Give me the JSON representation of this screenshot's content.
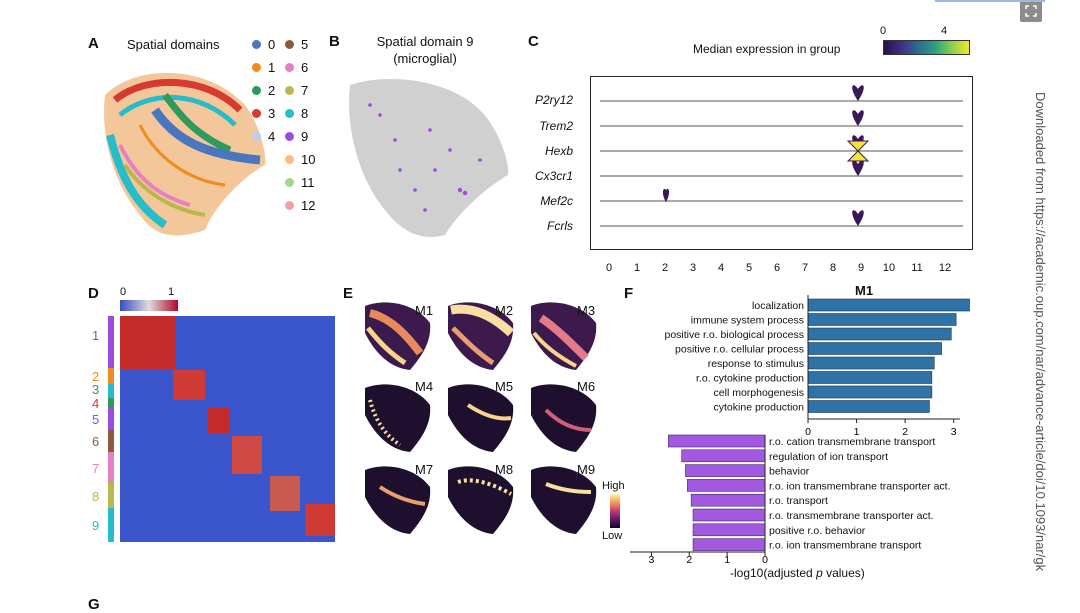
{
  "panels": {
    "A": {
      "letter": "A",
      "title": "Spatial domains",
      "legend": [
        {
          "label": "0",
          "color": "#4a76c0"
        },
        {
          "label": "1",
          "color": "#f28a1c"
        },
        {
          "label": "2",
          "color": "#2f9a5b"
        },
        {
          "label": "3",
          "color": "#d63a30"
        },
        {
          "label": "4",
          "color": "#b8d0ea"
        },
        {
          "label": "5",
          "color": "#8c5a3c"
        },
        {
          "label": "6",
          "color": "#e77fc4"
        },
        {
          "label": "7",
          "color": "#b8b94a"
        },
        {
          "label": "8",
          "color": "#27bcc9"
        },
        {
          "label": "9",
          "color": "#9a4be0"
        },
        {
          "label": "10",
          "color": "#f7be7c"
        },
        {
          "label": "11",
          "color": "#9fd88a"
        },
        {
          "label": "12",
          "color": "#f5a0a0"
        }
      ]
    },
    "B": {
      "letter": "B",
      "title_line1": "Spatial domain 9",
      "title_line2": "(microglial)"
    },
    "C": {
      "letter": "C",
      "colorbar_title": "Median expression in group",
      "colorbar_min": "0",
      "colorbar_max": "4",
      "genes": [
        "P2ry12",
        "Trem2",
        "Hexb",
        "Cx3cr1",
        "Mef2c",
        "Fcrls"
      ],
      "groups": [
        "0",
        "1",
        "2",
        "3",
        "4",
        "5",
        "6",
        "7",
        "8",
        "9",
        "10",
        "11",
        "12"
      ]
    },
    "D": {
      "letter": "D",
      "colorbar_min": "0",
      "colorbar_max": "1",
      "domain_labels": [
        "1",
        "2",
        "3",
        "4",
        "5",
        "6",
        "7",
        "8",
        "9"
      ]
    },
    "E": {
      "letter": "E",
      "modules": [
        "M1",
        "M2",
        "M3",
        "M4",
        "M5",
        "M6",
        "M7",
        "M8",
        "M9"
      ],
      "colorbar_high": "High",
      "colorbar_low": "Low"
    },
    "F": {
      "letter": "F",
      "M1": {
        "title": "M1",
        "terms": [
          "localization",
          "immune system process",
          "positive r.o. biological process",
          "positive r.o. cellular process",
          "response to stimulus",
          "r.o. cytokine production",
          "cell morphogenesis",
          "cytokine production"
        ],
        "ticks": [
          "0",
          "1",
          "2",
          "3"
        ]
      },
      "M5": {
        "title": "M5",
        "terms": [
          "r.o. cation transmembrane transport",
          "regulation of ion transport",
          "behavior",
          "r.o. ion transmembrane transporter act.",
          "r.o. transport",
          "r.o. transmembrane transporter act.",
          "positive r.o. behavior",
          "r.o. ion transmembrane transport"
        ],
        "ticks": [
          "3",
          "2",
          "1",
          "0"
        ]
      },
      "xlabel_prefix": "-log10(adjusted ",
      "xlabel_italic": "p",
      "xlabel_suffix": " values)"
    },
    "G": {
      "letter": "G"
    }
  },
  "chart_data": [
    {
      "type": "bar",
      "title": "M1",
      "categories": [
        "localization",
        "immune system process",
        "positive r.o. biological process",
        "positive r.o. cellular process",
        "response to stimulus",
        "r.o. cytokine production",
        "cell morphogenesis",
        "cytokine production"
      ],
      "values": [
        3.45,
        3.05,
        2.95,
        2.75,
        2.6,
        2.55,
        2.55,
        2.5
      ],
      "xlabel": "-log10(adjusted p values)",
      "xlim": [
        0,
        3.5
      ],
      "color": "#2f73a6"
    },
    {
      "type": "bar",
      "title": "M5",
      "categories": [
        "r.o. cation transmembrane transport",
        "regulation of ion transport",
        "behavior",
        "r.o. ion transmembrane transporter act.",
        "r.o. transport",
        "r.o. transmembrane transporter act.",
        "positive r.o. behavior",
        "r.o. ion transmembrane transport"
      ],
      "values": [
        2.55,
        2.2,
        2.1,
        2.05,
        1.95,
        1.9,
        1.9,
        1.9
      ],
      "xlabel": "-log10(adjusted p values)",
      "xlim": [
        0,
        3.3
      ],
      "color": "#a259e0"
    }
  ],
  "side": {
    "text": "Downloaded from https://academic.oup.com/nar/advance-article/doi/10.1093/nar/gk"
  },
  "toolbar": {
    "expand_icon": "expand-icon"
  }
}
